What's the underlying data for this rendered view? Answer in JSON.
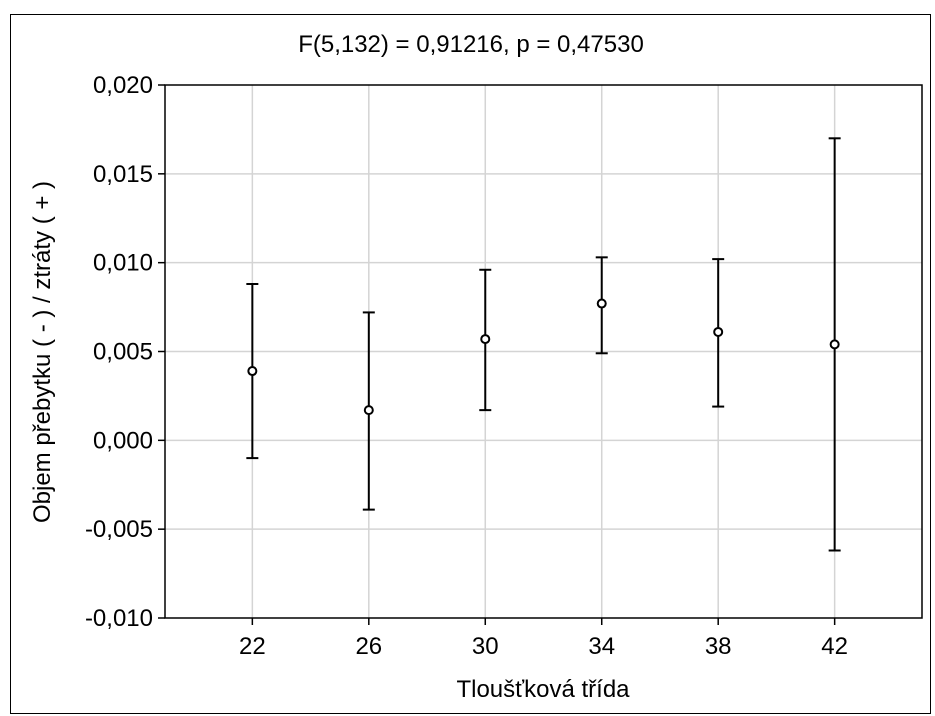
{
  "chart_data": {
    "type": "scatter",
    "title": "F(5,132) = 0,91216, p = 0,47530",
    "xlabel": "Tloušťková třída",
    "ylabel": "Objem přebytku ( - ) / ztráty ( + )",
    "x_ticks": [
      "22",
      "26",
      "30",
      "34",
      "38",
      "42"
    ],
    "y_ticks": [
      "0,020",
      "0,015",
      "0,010",
      "0,005",
      "0,000",
      "-0,005",
      "-0,010"
    ],
    "ylim": [
      -0.01,
      0.02
    ],
    "xlim": [
      19,
      45
    ],
    "grid": true,
    "series": [
      {
        "x": [
          22,
          26,
          30,
          34,
          38,
          42
        ],
        "mean": [
          0.0039,
          0.0017,
          0.0057,
          0.0077,
          0.0061,
          0.0054
        ],
        "lower": [
          -0.001,
          -0.0039,
          0.0017,
          0.0049,
          0.0019,
          -0.0062
        ],
        "upper": [
          0.0088,
          0.0072,
          0.0096,
          0.0103,
          0.0102,
          0.017
        ]
      }
    ]
  }
}
